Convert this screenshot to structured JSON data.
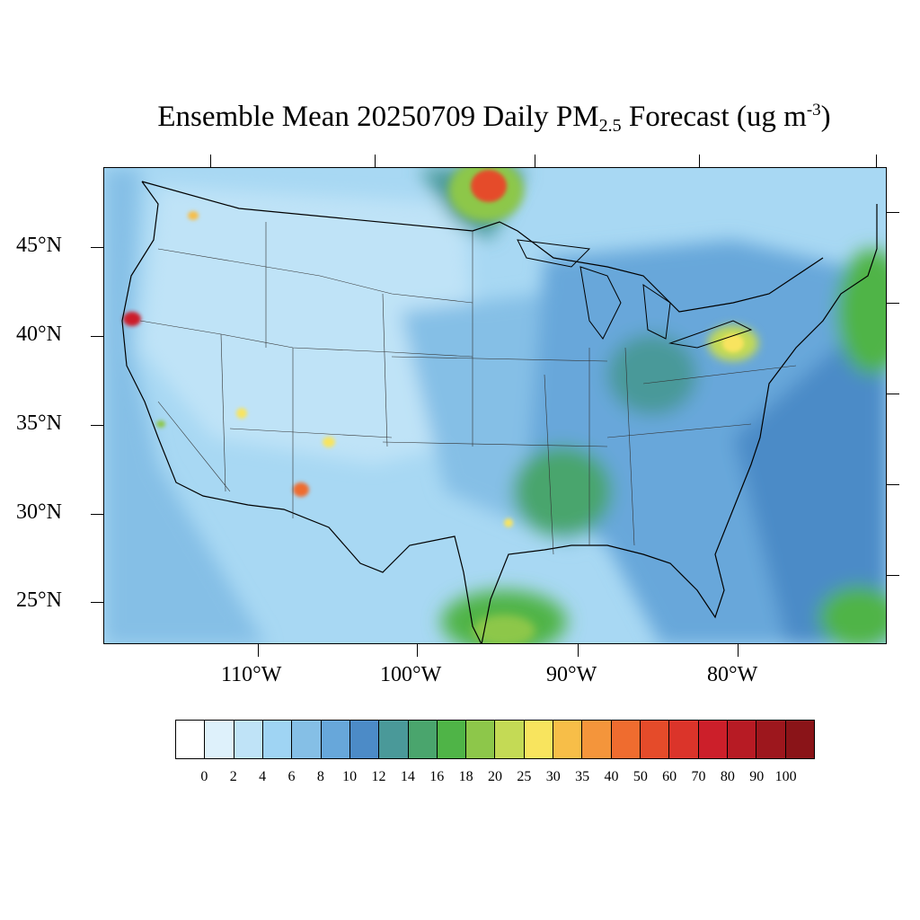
{
  "title": {
    "prefix": "Ensemble Mean 20250709 Daily PM",
    "subscript": "2.5",
    "middle": " Forecast (ug m",
    "superscript": "-3",
    "suffix": ")"
  },
  "axes": {
    "lat_labels": [
      "45°N",
      "40°N",
      "35°N",
      "30°N",
      "25°N"
    ],
    "lon_labels": [
      "110°W",
      "100°W",
      "90°W",
      "80°W"
    ]
  },
  "colorbar": {
    "labels": [
      "0",
      "2",
      "4",
      "6",
      "8",
      "10",
      "12",
      "14",
      "16",
      "18",
      "20",
      "25",
      "30",
      "35",
      "40",
      "50",
      "60",
      "70",
      "80",
      "90",
      "100"
    ],
    "colors": [
      "#ffffff",
      "#def1fb",
      "#bfe3f7",
      "#9fd4f3",
      "#85bfe6",
      "#67a7da",
      "#4c8bc7",
      "#4a9999",
      "#4aa56d",
      "#4fb447",
      "#8dc74a",
      "#c4da55",
      "#f8e45e",
      "#f7be48",
      "#f4953b",
      "#ef6c2f",
      "#e54b2a",
      "#db342a",
      "#cc1f2a",
      "#b71b24",
      "#9d171d",
      "#8a1418"
    ]
  },
  "map": {
    "ocean_color": "#8ac3e9",
    "land_background": "#a8d8f3",
    "hotspots": [
      {
        "name": "northern-california",
        "color": "#cc1f2a"
      },
      {
        "name": "minnesota-canada-border",
        "color": "#b71b24"
      },
      {
        "name": "pennsylvania",
        "color": "#f8e45e"
      },
      {
        "name": "gulf-of-mexico",
        "color": "#8dc74a"
      },
      {
        "name": "new-mexico",
        "color": "#ef6c2f"
      },
      {
        "name": "arizona",
        "color": "#f8e45e"
      },
      {
        "name": "idaho",
        "color": "#f7be48"
      },
      {
        "name": "louisiana",
        "color": "#f8e45e"
      }
    ]
  }
}
